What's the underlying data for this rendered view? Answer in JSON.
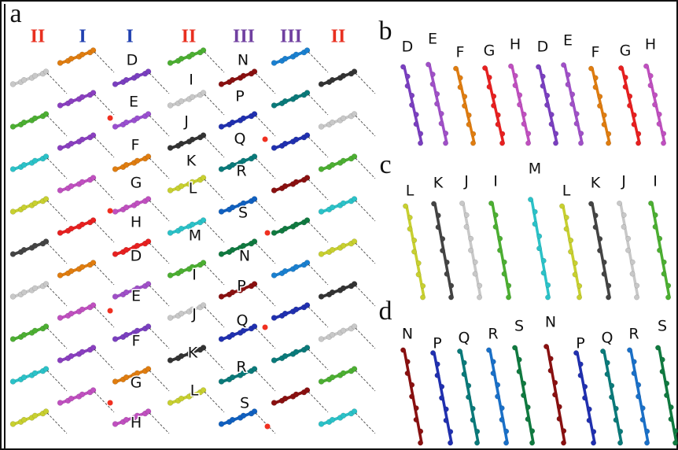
{
  "panels": {
    "a": {
      "label": "a",
      "column_labels": [
        "II",
        "I",
        "I",
        "II",
        "III",
        "III",
        "II"
      ],
      "molecule_labels": [
        "D",
        "I",
        "N",
        "E",
        "P",
        "J",
        "F",
        "Q",
        "K",
        "R",
        "G",
        "L",
        "S",
        "H",
        "M",
        "D",
        "N",
        "I",
        "P",
        "E",
        "J",
        "Q",
        "F",
        "K",
        "R",
        "G",
        "L",
        "S",
        "H"
      ]
    },
    "b": {
      "label": "b",
      "molecule_labels": [
        "D",
        "E",
        "F",
        "G",
        "H",
        "D",
        "E",
        "F",
        "G",
        "H"
      ]
    },
    "c": {
      "label": "c",
      "molecule_labels": [
        "L",
        "K",
        "J",
        "I",
        "M",
        "L",
        "K",
        "J",
        "I"
      ]
    },
    "d": {
      "label": "d",
      "molecule_labels": [
        "N",
        "P",
        "Q",
        "R",
        "S",
        "N",
        "P",
        "Q",
        "R",
        "S"
      ]
    }
  }
}
